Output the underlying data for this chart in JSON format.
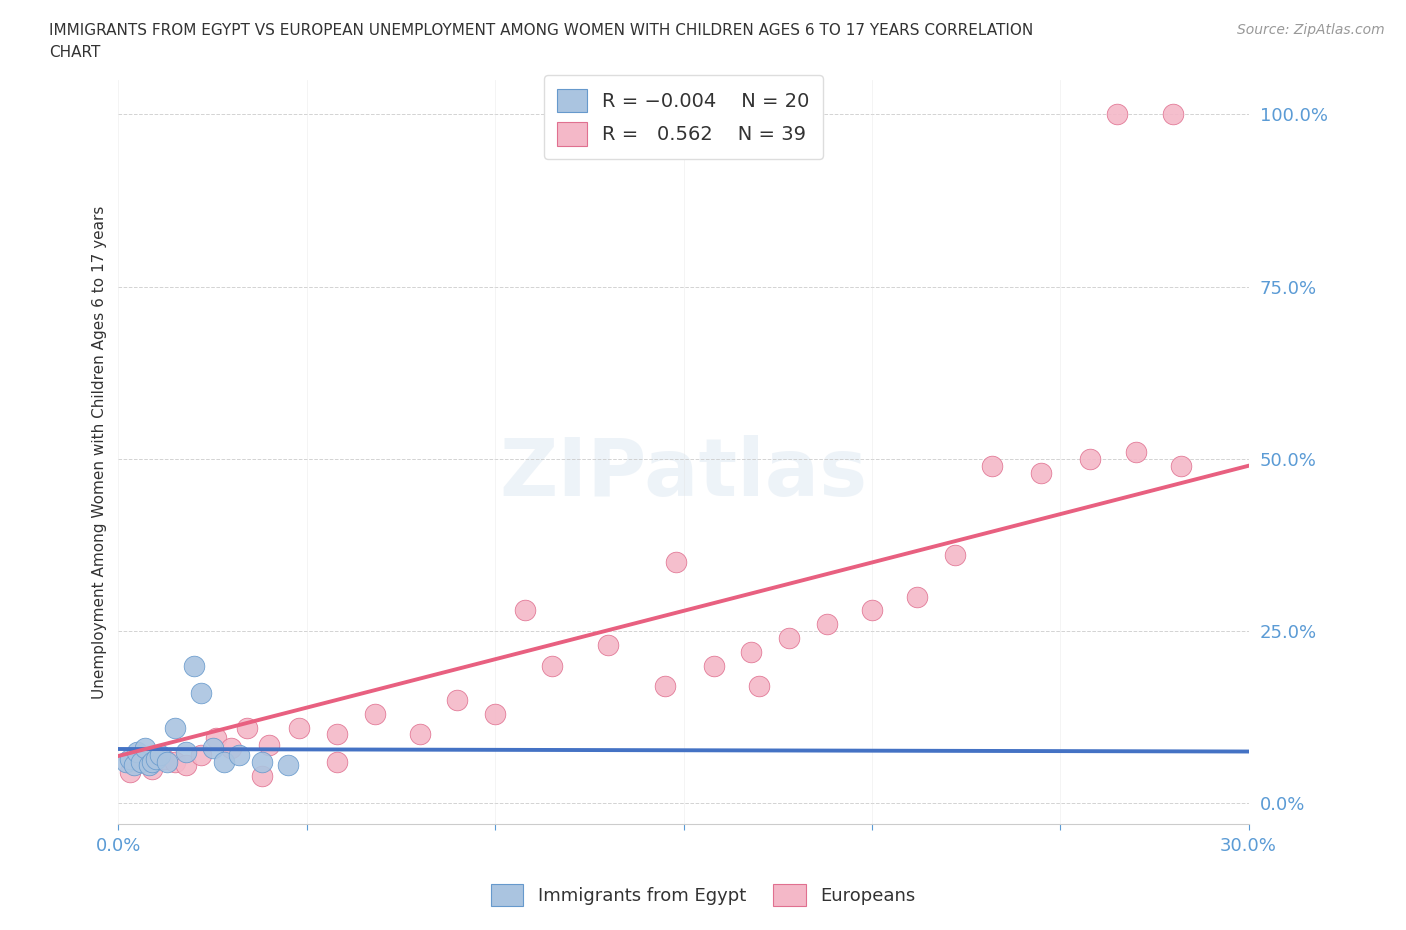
{
  "title_line1": "IMMIGRANTS FROM EGYPT VS EUROPEAN UNEMPLOYMENT AMONG WOMEN WITH CHILDREN AGES 6 TO 17 YEARS CORRELATION",
  "title_line2": "CHART",
  "source": "Source: ZipAtlas.com",
  "ylabel": "Unemployment Among Women with Children Ages 6 to 17 years",
  "xlim": [
    0.0,
    0.3
  ],
  "ylim": [
    -0.03,
    1.05
  ],
  "color_egypt": "#aac4e0",
  "color_europe": "#f4b8c8",
  "color_egypt_line": "#4472c4",
  "color_europe_line": "#e86080",
  "R_egypt": -0.004,
  "N_egypt": 20,
  "R_europe": 0.562,
  "N_europe": 39,
  "egypt_x": [
    0.002,
    0.003,
    0.004,
    0.005,
    0.006,
    0.007,
    0.008,
    0.009,
    0.01,
    0.011,
    0.013,
    0.015,
    0.018,
    0.02,
    0.022,
    0.025,
    0.028,
    0.032,
    0.038,
    0.045
  ],
  "egypt_y": [
    0.06,
    0.065,
    0.055,
    0.075,
    0.06,
    0.08,
    0.055,
    0.06,
    0.065,
    0.07,
    0.06,
    0.11,
    0.075,
    0.2,
    0.16,
    0.08,
    0.06,
    0.07,
    0.06,
    0.055
  ],
  "europe_x": [
    0.003,
    0.006,
    0.009,
    0.012,
    0.015,
    0.018,
    0.022,
    0.026,
    0.03,
    0.034,
    0.04,
    0.048,
    0.058,
    0.068,
    0.08,
    0.09,
    0.1,
    0.115,
    0.13,
    0.145,
    0.158,
    0.168,
    0.178,
    0.188,
    0.2,
    0.212,
    0.222,
    0.232,
    0.245,
    0.258,
    0.27,
    0.282,
    0.148,
    0.108,
    0.17,
    0.038,
    0.058,
    0.265,
    0.28
  ],
  "europe_y": [
    0.045,
    0.06,
    0.05,
    0.065,
    0.06,
    0.055,
    0.07,
    0.095,
    0.08,
    0.11,
    0.085,
    0.11,
    0.1,
    0.13,
    0.1,
    0.15,
    0.13,
    0.2,
    0.23,
    0.17,
    0.2,
    0.22,
    0.24,
    0.26,
    0.28,
    0.3,
    0.36,
    0.49,
    0.48,
    0.5,
    0.51,
    0.49,
    0.35,
    0.28,
    0.17,
    0.04,
    0.06,
    1.0,
    1.0
  ],
  "watermark": "ZIPatlas",
  "bg_color": "#ffffff",
  "grid_color_h": "#c8c8c8",
  "grid_color_v": "#e0e0e0",
  "axis_label_color": "#5b9bd5",
  "legend_R_color": "#5b9bd5",
  "legend_N_color": "#5b9bd5"
}
